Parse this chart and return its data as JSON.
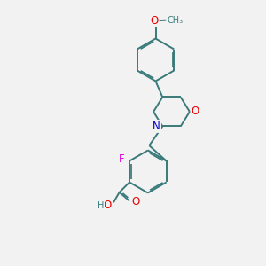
{
  "bg_color": "#f2f2f2",
  "bond_color": "#3a7a7a",
  "atom_colors": {
    "O": "#e60000",
    "N": "#0000cc",
    "F": "#dd00dd",
    "C": "#3a7a7a",
    "H": "#3a7a7a"
  },
  "line_width": 1.4,
  "font_size": 8.5,
  "dbo": 0.055
}
